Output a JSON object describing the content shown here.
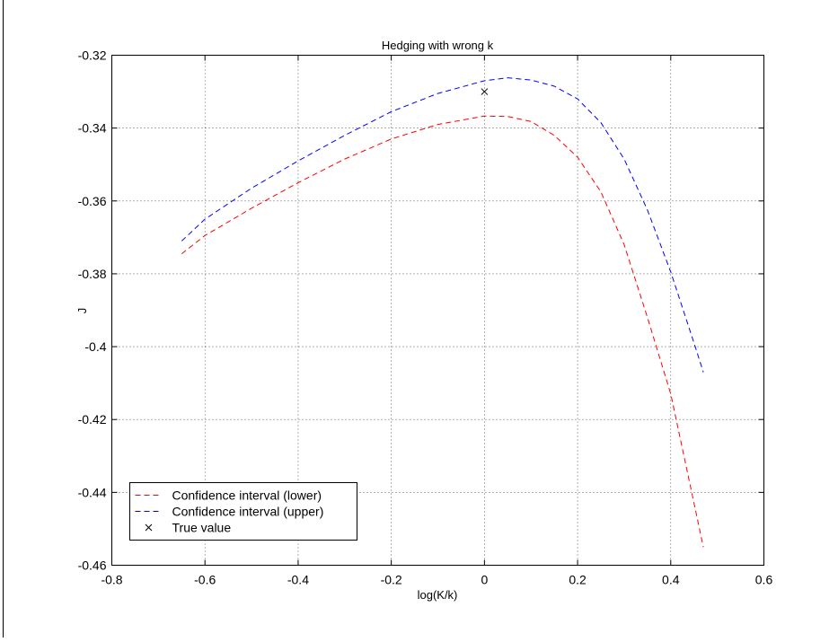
{
  "chart_data": {
    "type": "line",
    "title": "Hedging with wrong k",
    "xlabel": "log(K/k)",
    "ylabel": "J",
    "xlim": [
      -0.8,
      0.6
    ],
    "ylim": [
      -0.46,
      -0.32
    ],
    "xticks": [
      -0.8,
      -0.6,
      -0.4,
      -0.2,
      0,
      0.2,
      0.4,
      0.6
    ],
    "xtick_labels": [
      "-0.8",
      "-0.6",
      "-0.4",
      "-0.2",
      "0",
      "0.2",
      "0.4",
      "0.6"
    ],
    "yticks": [
      -0.32,
      -0.34,
      -0.36,
      -0.38,
      -0.4,
      -0.42,
      -0.44,
      -0.46
    ],
    "ytick_labels": [
      "-0.32",
      "-0.34",
      "-0.36",
      "-0.38",
      "-0.4",
      "-0.42",
      "-0.44",
      "-0.46"
    ],
    "grid": true,
    "legend_position": "bottom-left",
    "series": [
      {
        "name": "Confidence interval (lower)",
        "color": "#ff0000",
        "style": "dashed",
        "x": [
          -0.65,
          -0.6,
          -0.5,
          -0.4,
          -0.3,
          -0.2,
          -0.1,
          0,
          0.05,
          0.1,
          0.15,
          0.2,
          0.25,
          0.3,
          0.35,
          0.4,
          0.45,
          0.47
        ],
        "y": [
          -0.3745,
          -0.3695,
          -0.362,
          -0.355,
          -0.3485,
          -0.343,
          -0.339,
          -0.3367,
          -0.3368,
          -0.3382,
          -0.342,
          -0.348,
          -0.3575,
          -0.372,
          -0.392,
          -0.413,
          -0.443,
          -0.455
        ]
      },
      {
        "name": "Confidence interval (upper)",
        "color": "#0000ff",
        "style": "dashed",
        "x": [
          -0.65,
          -0.6,
          -0.5,
          -0.4,
          -0.3,
          -0.2,
          -0.1,
          0,
          0.05,
          0.1,
          0.15,
          0.2,
          0.25,
          0.3,
          0.35,
          0.4,
          0.45,
          0.47
        ],
        "y": [
          -0.371,
          -0.365,
          -0.3565,
          -0.349,
          -0.342,
          -0.3355,
          -0.3305,
          -0.327,
          -0.3262,
          -0.3268,
          -0.3285,
          -0.332,
          -0.3385,
          -0.3485,
          -0.3625,
          -0.3795,
          -0.399,
          -0.407
        ]
      },
      {
        "name": "True value",
        "color": "#000000",
        "style": "marker-x",
        "x": [
          0
        ],
        "y": [
          -0.33
        ]
      }
    ]
  }
}
